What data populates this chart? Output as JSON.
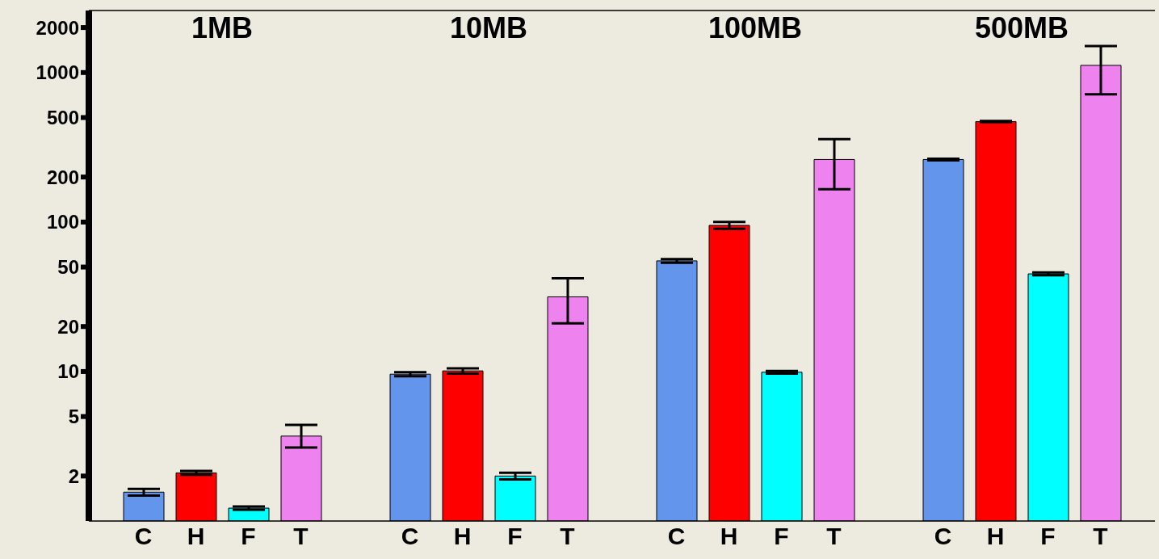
{
  "chart_data": [
    {
      "type": "bar",
      "title": "1MB",
      "categories": [
        "C",
        "H",
        "F",
        "T"
      ],
      "values": [
        1.56,
        2.1,
        1.22,
        3.7
      ],
      "colors": [
        "#6495ed",
        "#ff0000",
        "#00ffff",
        "#ee82ee"
      ],
      "errors": [
        0.08,
        0.06,
        0.03,
        [
          3.1,
          4.4
        ]
      ],
      "log": "y",
      "ylim": [
        1,
        2600
      ],
      "yticks": [
        2,
        5,
        10,
        20,
        50,
        100,
        200,
        500,
        1000,
        2000
      ]
    },
    {
      "type": "bar",
      "title": "10MB",
      "categories": [
        "C",
        "H",
        "F",
        "T"
      ],
      "values": [
        9.6,
        10.1,
        2.0,
        31.6
      ],
      "colors": [
        "#6495ed",
        "#ff0000",
        "#00ffff",
        "#ee82ee"
      ],
      "errors": [
        0.3,
        0.4,
        0.1,
        [
          21,
          42
        ]
      ],
      "log": "y",
      "ylim": [
        1,
        2600
      ],
      "yticks": [
        2,
        5,
        10,
        20,
        50,
        100,
        200,
        500,
        1000,
        2000
      ],
      "tick_labels": "x"
    },
    {
      "type": "bar",
      "title": "100MB",
      "categories": [
        "C",
        "H",
        "F",
        "T"
      ],
      "values": [
        55,
        95,
        9.9,
        262
      ],
      "colors": [
        "#6495ed",
        "#ff0000",
        "#00ffff",
        "#ee82ee"
      ],
      "errors": [
        1.5,
        [
          90,
          100
        ],
        0.2,
        [
          166,
          358
        ]
      ],
      "log": "y",
      "ylim": [
        1,
        2600
      ],
      "yticks": [
        2,
        5,
        10,
        20,
        50,
        100,
        200,
        500,
        1000,
        2000
      ],
      "tick_labels": "x"
    },
    {
      "type": "bar",
      "title": "500MB",
      "categories": [
        "C",
        "H",
        "F",
        "T"
      ],
      "values": [
        262,
        470,
        45,
        1117
      ],
      "colors": [
        "#6495ed",
        "#ff0000",
        "#00ffff",
        "#ee82ee"
      ],
      "errors": [
        3,
        5,
        1,
        [
          716,
          1503
        ]
      ],
      "log": "y",
      "ylim": [
        1,
        2600
      ],
      "yticks": [
        2,
        5,
        10,
        20,
        50,
        100,
        200,
        500,
        1000,
        2000
      ],
      "tick_labels": "x"
    }
  ]
}
